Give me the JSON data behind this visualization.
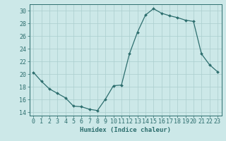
{
  "x": [
    0,
    1,
    2,
    3,
    4,
    5,
    6,
    7,
    8,
    9,
    10,
    11,
    12,
    13,
    14,
    15,
    16,
    17,
    18,
    19,
    20,
    21,
    22,
    23
  ],
  "y": [
    20.3,
    18.9,
    17.7,
    17.0,
    16.3,
    15.0,
    14.9,
    14.5,
    14.3,
    16.1,
    18.2,
    18.3,
    23.2,
    26.6,
    29.3,
    30.3,
    29.6,
    29.2,
    28.9,
    28.5,
    28.3,
    23.2,
    21.5,
    20.4
  ],
  "line_color": "#2d6e6e",
  "marker": "D",
  "marker_size": 2.0,
  "bg_color": "#cce8e8",
  "grid_color": "#aacece",
  "xlabel": "Humidex (Indice chaleur)",
  "xlim": [
    -0.5,
    23.5
  ],
  "ylim": [
    13.5,
    31.0
  ],
  "yticks": [
    14,
    16,
    18,
    20,
    22,
    24,
    26,
    28,
    30
  ],
  "xticks": [
    0,
    1,
    2,
    3,
    4,
    5,
    6,
    7,
    8,
    9,
    10,
    11,
    12,
    13,
    14,
    15,
    16,
    17,
    18,
    19,
    20,
    21,
    22,
    23
  ],
  "text_color": "#2d6e6e",
  "xlabel_fontsize": 6.5,
  "tick_fontsize": 6.0,
  "linewidth": 0.9
}
